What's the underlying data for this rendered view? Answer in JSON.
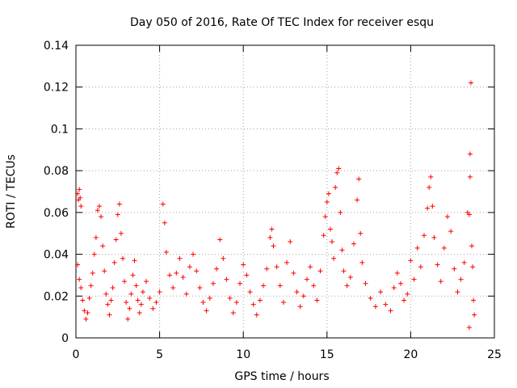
{
  "chart_data": {
    "type": "scatter",
    "title": "Day 050 of 2016, Rate Of TEC Index for receiver esqu",
    "xlabel": "GPS time / hours",
    "ylabel": "ROTI / TECUs",
    "xlim": [
      0,
      25
    ],
    "ylim": [
      0,
      0.14
    ],
    "x_ticks": [
      0,
      5,
      10,
      15,
      20,
      25
    ],
    "y_ticks": [
      0,
      0.02,
      0.04,
      0.06,
      0.08,
      0.1,
      0.12,
      0.14
    ],
    "x_tick_labels": [
      "0",
      "5",
      "10",
      "15",
      "20",
      "25"
    ],
    "y_tick_labels": [
      "0",
      "0.02",
      "0.04",
      "0.06",
      "0.08",
      "0.1",
      "0.12",
      "0.14"
    ],
    "grid": true,
    "marker": "+",
    "marker_color": "#ff0000",
    "series": [
      {
        "name": "ROTI",
        "points": [
          [
            0.1,
            0.069
          ],
          [
            0.15,
            0.066
          ],
          [
            0.2,
            0.071
          ],
          [
            0.25,
            0.067
          ],
          [
            0.3,
            0.063
          ],
          [
            0.1,
            0.035
          ],
          [
            0.2,
            0.028
          ],
          [
            0.3,
            0.024
          ],
          [
            0.4,
            0.018
          ],
          [
            0.5,
            0.013
          ],
          [
            0.6,
            0.009
          ],
          [
            0.7,
            0.012
          ],
          [
            0.8,
            0.019
          ],
          [
            0.9,
            0.025
          ],
          [
            1.0,
            0.031
          ],
          [
            1.1,
            0.04
          ],
          [
            1.2,
            0.048
          ],
          [
            1.3,
            0.061
          ],
          [
            1.4,
            0.063
          ],
          [
            1.5,
            0.058
          ],
          [
            1.6,
            0.044
          ],
          [
            1.7,
            0.032
          ],
          [
            1.8,
            0.021
          ],
          [
            1.9,
            0.016
          ],
          [
            2.0,
            0.011
          ],
          [
            2.1,
            0.018
          ],
          [
            2.2,
            0.024
          ],
          [
            2.3,
            0.036
          ],
          [
            2.4,
            0.047
          ],
          [
            2.5,
            0.059
          ],
          [
            2.6,
            0.064
          ],
          [
            2.7,
            0.05
          ],
          [
            2.8,
            0.038
          ],
          [
            2.9,
            0.027
          ],
          [
            3.0,
            0.017
          ],
          [
            3.1,
            0.009
          ],
          [
            3.2,
            0.014
          ],
          [
            3.3,
            0.021
          ],
          [
            3.4,
            0.03
          ],
          [
            3.5,
            0.037
          ],
          [
            3.6,
            0.025
          ],
          [
            3.7,
            0.018
          ],
          [
            3.8,
            0.012
          ],
          [
            3.9,
            0.016
          ],
          [
            4.0,
            0.022
          ],
          [
            4.2,
            0.027
          ],
          [
            4.4,
            0.019
          ],
          [
            4.6,
            0.014
          ],
          [
            4.8,
            0.017
          ],
          [
            5.0,
            0.022
          ],
          [
            5.2,
            0.064
          ],
          [
            5.3,
            0.055
          ],
          [
            5.4,
            0.041
          ],
          [
            5.6,
            0.03
          ],
          [
            5.8,
            0.024
          ],
          [
            6.0,
            0.031
          ],
          [
            6.2,
            0.038
          ],
          [
            6.4,
            0.029
          ],
          [
            6.6,
            0.021
          ],
          [
            6.8,
            0.034
          ],
          [
            7.0,
            0.04
          ],
          [
            7.2,
            0.032
          ],
          [
            7.4,
            0.024
          ],
          [
            7.6,
            0.017
          ],
          [
            7.8,
            0.013
          ],
          [
            8.0,
            0.019
          ],
          [
            8.2,
            0.026
          ],
          [
            8.4,
            0.033
          ],
          [
            8.6,
            0.047
          ],
          [
            8.8,
            0.038
          ],
          [
            9.0,
            0.028
          ],
          [
            9.2,
            0.019
          ],
          [
            9.4,
            0.012
          ],
          [
            9.6,
            0.017
          ],
          [
            9.8,
            0.026
          ],
          [
            10.0,
            0.035
          ],
          [
            10.2,
            0.03
          ],
          [
            10.4,
            0.022
          ],
          [
            10.6,
            0.016
          ],
          [
            10.8,
            0.011
          ],
          [
            11.0,
            0.018
          ],
          [
            11.2,
            0.025
          ],
          [
            11.4,
            0.033
          ],
          [
            11.6,
            0.048
          ],
          [
            11.7,
            0.052
          ],
          [
            11.8,
            0.044
          ],
          [
            12.0,
            0.034
          ],
          [
            12.2,
            0.025
          ],
          [
            12.4,
            0.017
          ],
          [
            12.6,
            0.036
          ],
          [
            12.8,
            0.046
          ],
          [
            13.0,
            0.031
          ],
          [
            13.2,
            0.022
          ],
          [
            13.4,
            0.015
          ],
          [
            13.6,
            0.02
          ],
          [
            13.8,
            0.028
          ],
          [
            14.0,
            0.034
          ],
          [
            14.2,
            0.025
          ],
          [
            14.4,
            0.018
          ],
          [
            14.6,
            0.032
          ],
          [
            14.8,
            0.049
          ],
          [
            14.9,
            0.058
          ],
          [
            15.0,
            0.065
          ],
          [
            15.1,
            0.069
          ],
          [
            15.2,
            0.052
          ],
          [
            15.3,
            0.046
          ],
          [
            15.4,
            0.038
          ],
          [
            15.5,
            0.072
          ],
          [
            15.6,
            0.079
          ],
          [
            15.7,
            0.081
          ],
          [
            15.8,
            0.06
          ],
          [
            15.9,
            0.042
          ],
          [
            16.0,
            0.032
          ],
          [
            16.2,
            0.025
          ],
          [
            16.4,
            0.029
          ],
          [
            16.6,
            0.045
          ],
          [
            16.8,
            0.066
          ],
          [
            16.9,
            0.076
          ],
          [
            17.0,
            0.05
          ],
          [
            17.1,
            0.036
          ],
          [
            17.3,
            0.026
          ],
          [
            17.6,
            0.019
          ],
          [
            17.9,
            0.015
          ],
          [
            18.2,
            0.022
          ],
          [
            18.5,
            0.016
          ],
          [
            18.8,
            0.013
          ],
          [
            19.0,
            0.024
          ],
          [
            19.2,
            0.031
          ],
          [
            19.4,
            0.026
          ],
          [
            19.6,
            0.018
          ],
          [
            19.8,
            0.021
          ],
          [
            20.0,
            0.037
          ],
          [
            20.2,
            0.028
          ],
          [
            20.4,
            0.043
          ],
          [
            20.6,
            0.034
          ],
          [
            20.8,
            0.049
          ],
          [
            21.0,
            0.062
          ],
          [
            21.1,
            0.072
          ],
          [
            21.2,
            0.077
          ],
          [
            21.3,
            0.063
          ],
          [
            21.4,
            0.048
          ],
          [
            21.6,
            0.035
          ],
          [
            21.8,
            0.027
          ],
          [
            22.0,
            0.043
          ],
          [
            22.2,
            0.058
          ],
          [
            22.4,
            0.051
          ],
          [
            22.6,
            0.033
          ],
          [
            22.8,
            0.022
          ],
          [
            23.0,
            0.028
          ],
          [
            23.2,
            0.036
          ],
          [
            23.4,
            0.06
          ],
          [
            23.5,
            0.059
          ],
          [
            23.55,
            0.088
          ],
          [
            23.6,
            0.122
          ],
          [
            23.55,
            0.077
          ],
          [
            23.65,
            0.044
          ],
          [
            23.7,
            0.034
          ],
          [
            23.75,
            0.018
          ],
          [
            23.5,
            0.005
          ],
          [
            23.8,
            0.011
          ]
        ]
      }
    ]
  }
}
